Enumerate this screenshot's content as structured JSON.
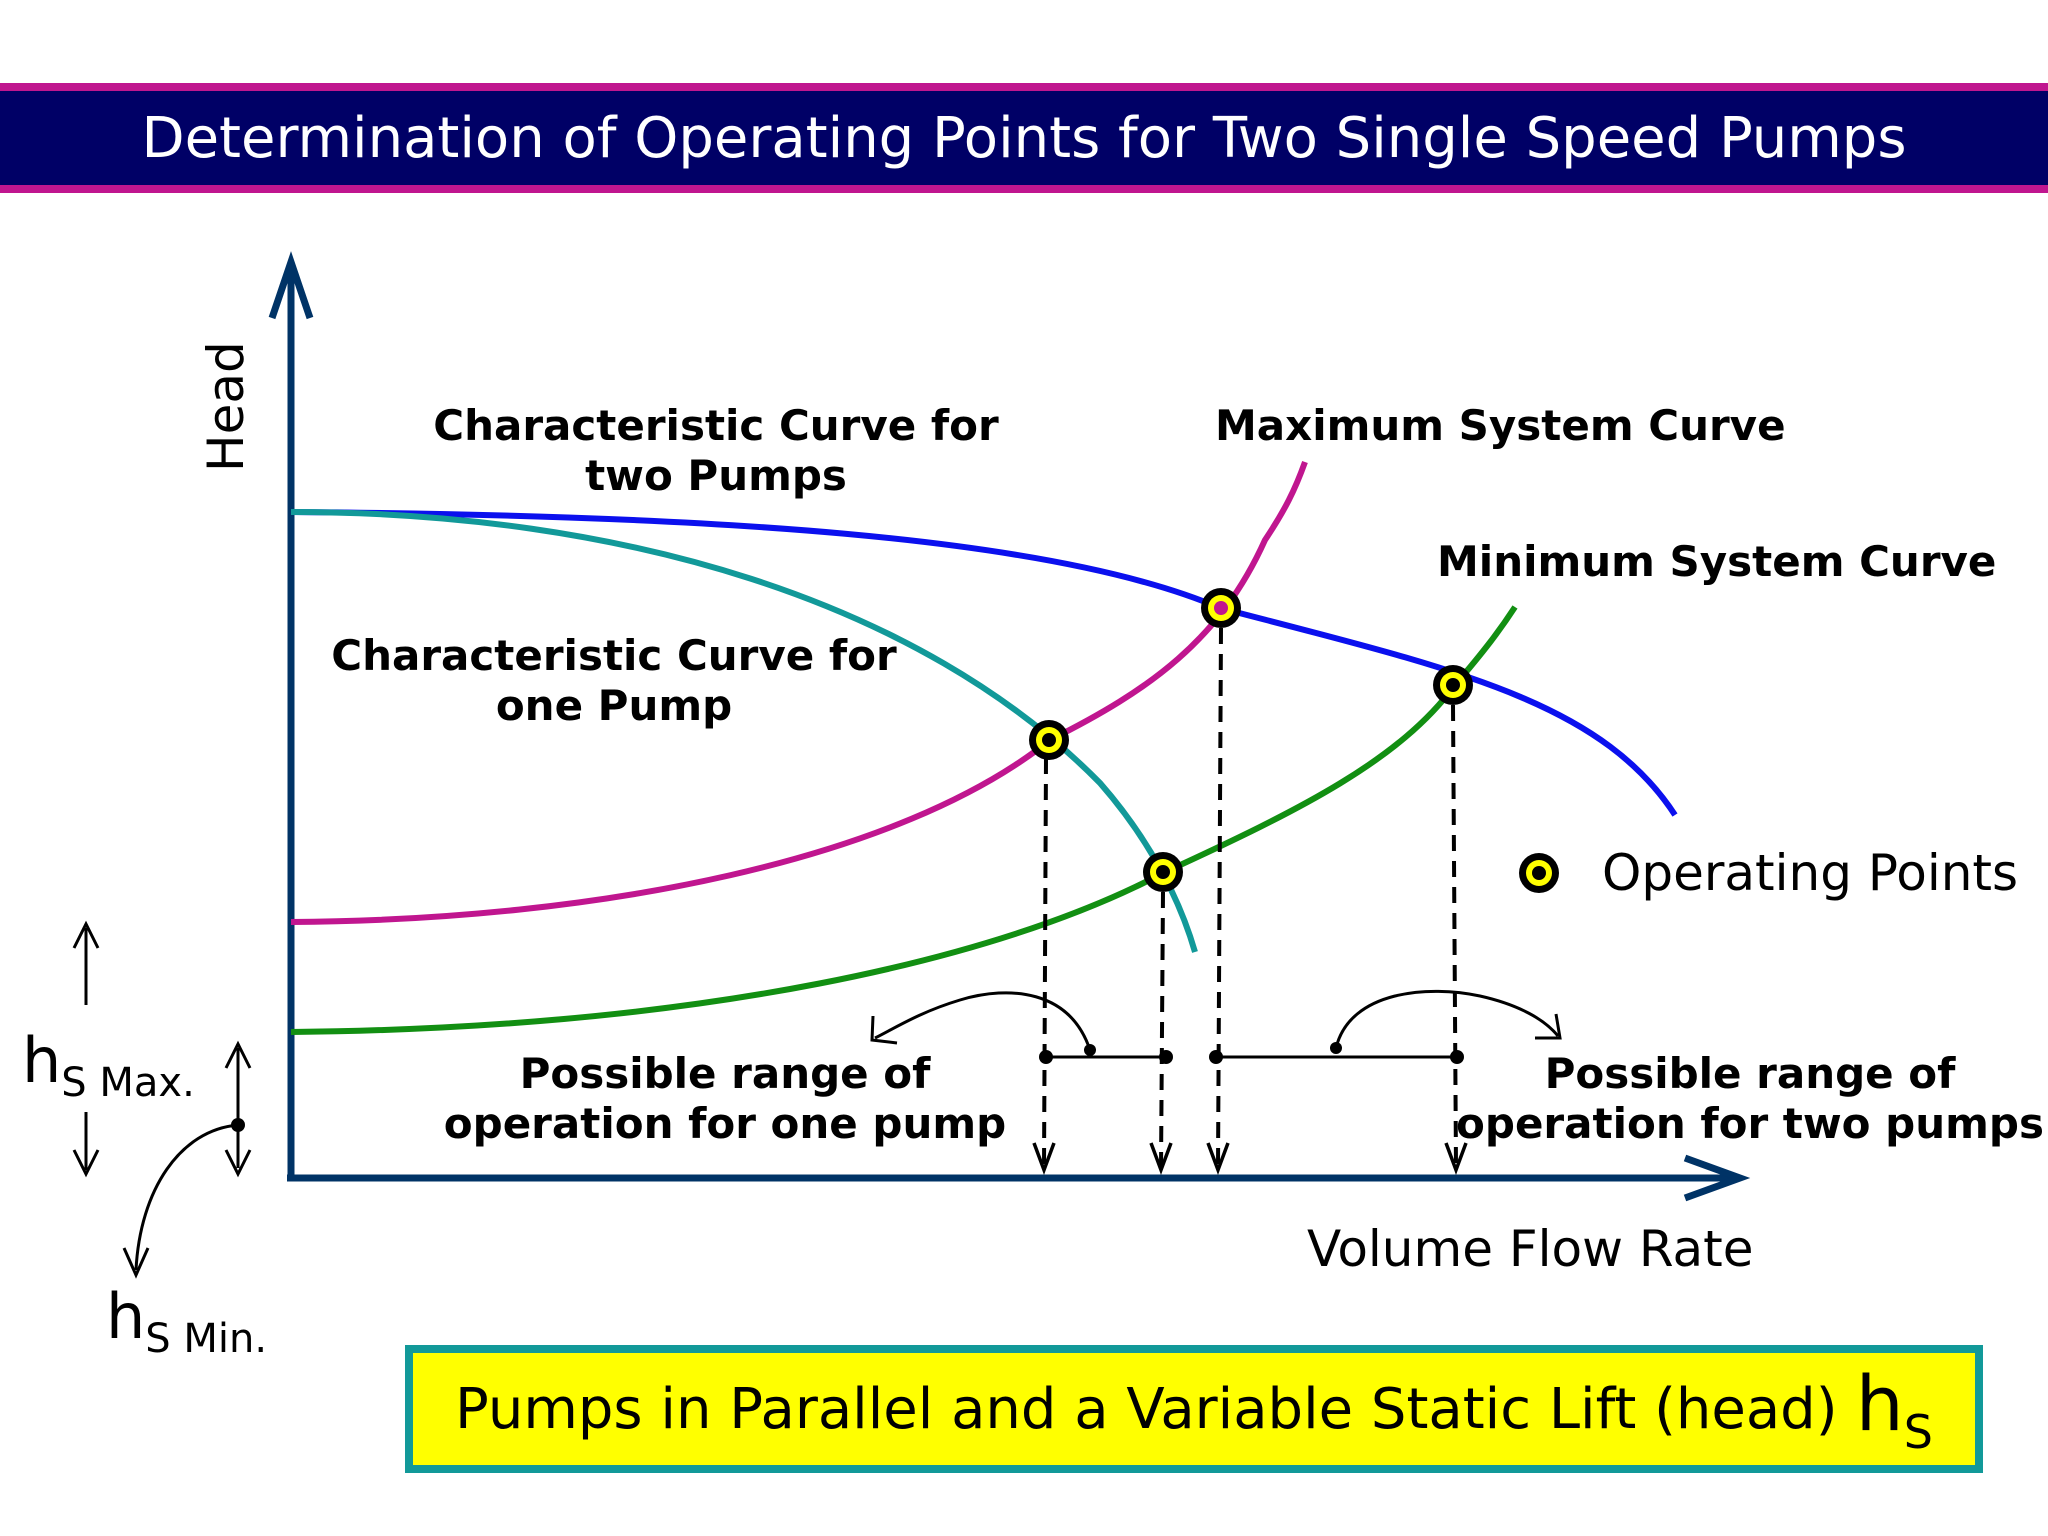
{
  "title": "Determination of Operating Points for Two Single Speed Pumps",
  "axes": {
    "y_label": "Head",
    "x_label": "Volume Flow Rate"
  },
  "curves": {
    "two_pumps": {
      "label_line1": "Characteristic Curve for",
      "label_line2": "two Pumps",
      "color": "#0b10ee"
    },
    "one_pump": {
      "label_line1": "Characteristic Curve for",
      "label_line2": "one Pump",
      "color": "#129999"
    },
    "max_system": {
      "label": "Maximum System Curve",
      "color": "#c0168f"
    },
    "min_system": {
      "label": "Minimum System Curve",
      "color": "#128f12"
    }
  },
  "legend": {
    "operating_points": "Operating Points"
  },
  "ranges": {
    "one_pump": {
      "line1": "Possible range of",
      "line2": "operation for one pump"
    },
    "two_pumps": {
      "line1": "Possible range of",
      "line2": "operation for two pumps"
    }
  },
  "static_lift": {
    "max_main": "h",
    "max_sub": "S Max.",
    "min_main": "h",
    "min_sub": "S Min."
  },
  "caption": {
    "text": "Pumps in Parallel and a Variable Static Lift (head)",
    "symbol": "h",
    "symbol_sub": "S"
  },
  "colors": {
    "axis": "#003366",
    "title_bg": "#000066",
    "title_border": "#c0168f",
    "caption_bg": "#ffff00",
    "caption_border": "#129999",
    "marker_ring": "#ffff00"
  }
}
